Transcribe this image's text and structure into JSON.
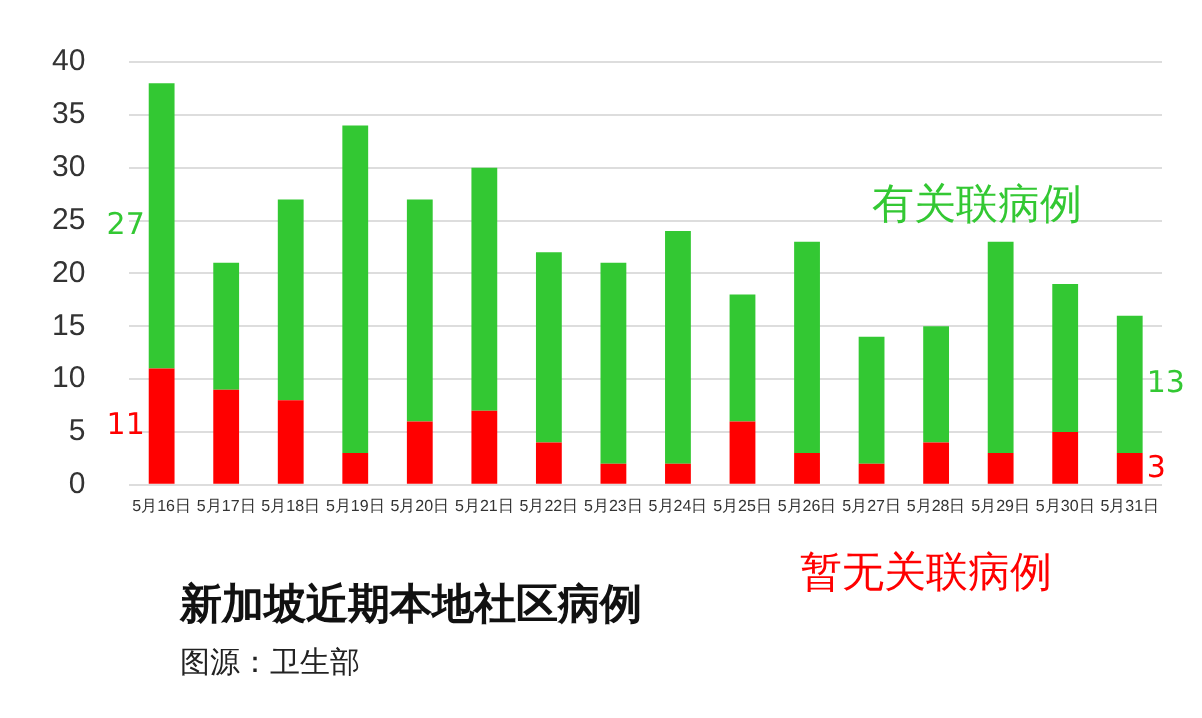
{
  "chart_data": {
    "type": "bar",
    "title": "新加坡近期本地社区病例",
    "annotations": [
      "图源：卫生部"
    ],
    "categories": [
      "5月16日",
      "5月17日",
      "5月18日",
      "5月19日",
      "5月20日",
      "5月21日",
      "5月22日",
      "5月23日",
      "5月24日",
      "5月25日",
      "5月26日",
      "5月27日",
      "5月28日",
      "5月29日",
      "5月30日",
      "5月31日"
    ],
    "stacked": true,
    "ylim": [
      0,
      40
    ],
    "yticks": [
      0,
      5,
      10,
      15,
      20,
      25,
      30,
      35,
      40
    ],
    "grid": "y",
    "legend": false,
    "series": [
      {
        "name": "暂无关联病例",
        "color": "#ff0000",
        "values": [
          11,
          9,
          8,
          3,
          6,
          7,
          4,
          2,
          2,
          6,
          3,
          2,
          4,
          3,
          5,
          3
        ],
        "value_labels": [
          "11",
          null,
          null,
          null,
          null,
          null,
          null,
          null,
          null,
          null,
          null,
          null,
          null,
          null,
          null,
          "3"
        ]
      },
      {
        "name": "有关联病例",
        "color": "#33c833",
        "values": [
          27,
          12,
          19,
          31,
          21,
          23,
          18,
          19,
          22,
          12,
          20,
          12,
          11,
          20,
          14,
          13
        ],
        "value_labels": [
          "27",
          null,
          null,
          null,
          null,
          null,
          null,
          null,
          null,
          null,
          null,
          null,
          null,
          null,
          null,
          "13"
        ]
      }
    ]
  }
}
